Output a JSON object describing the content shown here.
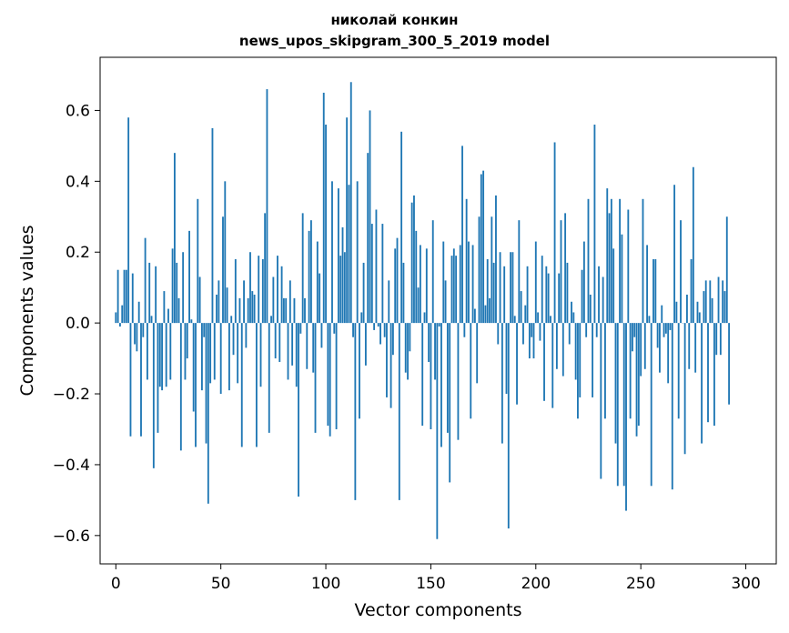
{
  "chart_data": {
    "type": "bar",
    "title": [
      "николай конкин",
      "news_upos_skipgram_300_5_2019 model"
    ],
    "xlabel": "Vector components",
    "ylabel": "Components values",
    "xlim": [
      -7.5,
      314.5
    ],
    "ylim": [
      -0.68,
      0.75
    ],
    "xticks": [
      0,
      50,
      100,
      150,
      200,
      250,
      300
    ],
    "yticks": [
      -0.6,
      -0.4,
      -0.2,
      0.0,
      0.2,
      0.4,
      0.6
    ],
    "grid": false,
    "color": "#1f77b4",
    "x_start": 0,
    "values": [
      0.03,
      0.15,
      -0.01,
      0.05,
      0.15,
      0.15,
      0.58,
      -0.32,
      0.14,
      -0.06,
      -0.08,
      0.06,
      -0.32,
      -0.04,
      0.24,
      -0.16,
      0.17,
      0.02,
      -0.41,
      0.16,
      -0.31,
      -0.18,
      -0.19,
      0.09,
      -0.18,
      0.04,
      -0.16,
      0.21,
      0.48,
      0.17,
      0.07,
      -0.36,
      0.2,
      -0.16,
      -0.1,
      0.26,
      0.01,
      -0.25,
      -0.35,
      0.35,
      0.13,
      -0.19,
      -0.04,
      -0.34,
      -0.51,
      -0.17,
      0.55,
      -0.16,
      0.08,
      0.12,
      -0.2,
      0.3,
      0.4,
      0.1,
      -0.19,
      0.02,
      -0.09,
      0.18,
      -0.17,
      0.07,
      -0.35,
      0.12,
      -0.07,
      0.07,
      0.2,
      0.09,
      0.08,
      -0.35,
      0.19,
      -0.18,
      0.18,
      0.31,
      0.66,
      -0.31,
      0.02,
      0.13,
      -0.1,
      0.19,
      -0.11,
      0.16,
      0.07,
      0.07,
      -0.16,
      0.12,
      -0.12,
      0.07,
      -0.18,
      -0.49,
      -0.03,
      0.31,
      0.07,
      -0.13,
      0.26,
      0.29,
      -0.14,
      -0.31,
      0.23,
      0.14,
      -0.07,
      0.65,
      0.56,
      -0.29,
      -0.32,
      0.4,
      -0.03,
      -0.3,
      0.38,
      0.19,
      0.27,
      0.2,
      0.58,
      0.39,
      0.68,
      -0.04,
      -0.5,
      0.4,
      -0.27,
      0.03,
      0.17,
      -0.12,
      0.48,
      0.6,
      0.28,
      -0.02,
      0.32,
      -0.01,
      -0.06,
      0.28,
      -0.04,
      -0.21,
      0.12,
      -0.24,
      -0.09,
      0.21,
      0.24,
      -0.5,
      0.54,
      0.17,
      -0.14,
      -0.16,
      -0.08,
      0.34,
      0.36,
      0.26,
      0.1,
      0.22,
      -0.29,
      0.03,
      0.21,
      -0.11,
      -0.3,
      0.29,
      -0.16,
      -0.61,
      -0.01,
      -0.35,
      0.23,
      0.12,
      -0.31,
      -0.45,
      0.19,
      0.21,
      0.19,
      -0.33,
      0.22,
      0.5,
      -0.04,
      0.35,
      0.23,
      -0.27,
      0.22,
      0.04,
      -0.17,
      0.3,
      0.42,
      0.43,
      0.05,
      0.18,
      0.07,
      0.3,
      0.17,
      0.36,
      -0.06,
      0.2,
      -0.34,
      0.16,
      -0.2,
      -0.58,
      0.2,
      0.2,
      0.02,
      -0.23,
      0.29,
      0.09,
      -0.06,
      0.05,
      0.16,
      -0.1,
      -0.04,
      -0.1,
      0.23,
      0.03,
      -0.05,
      0.19,
      -0.22,
      0.16,
      0.14,
      0.02,
      -0.24,
      0.51,
      -0.13,
      0.14,
      0.29,
      -0.15,
      0.31,
      0.17,
      -0.06,
      0.06,
      0.03,
      -0.16,
      -0.27,
      -0.21,
      0.15,
      0.23,
      -0.04,
      0.35,
      0.08,
      -0.21,
      0.56,
      -0.04,
      0.16,
      -0.44,
      0.13,
      -0.27,
      0.38,
      0.31,
      0.35,
      0.21,
      -0.34,
      -0.46,
      0.35,
      0.25,
      -0.46,
      -0.53,
      0.32,
      -0.27,
      -0.08,
      -0.04,
      -0.32,
      -0.29,
      -0.15,
      0.35,
      -0.13,
      0.22,
      0.02,
      -0.46,
      0.18,
      0.18,
      -0.07,
      -0.14,
      0.05,
      -0.04,
      -0.03,
      -0.17,
      -0.02,
      -0.47,
      0.39,
      0.06,
      -0.27,
      0.29,
      0.0,
      -0.37,
      0.08,
      -0.13,
      0.18,
      0.44,
      -0.14,
      0.06,
      0.03,
      -0.34,
      0.09,
      0.12,
      -0.28,
      0.12,
      0.07,
      -0.29,
      -0.09,
      0.13,
      -0.09,
      0.12,
      0.09,
      0.3,
      -0.23
    ],
    "x_end": 299
  }
}
